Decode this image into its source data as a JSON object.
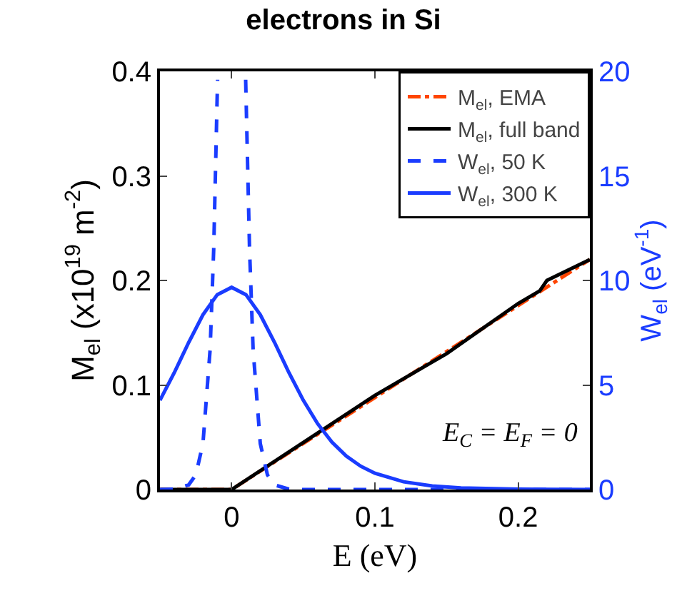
{
  "chart_data": {
    "type": "line",
    "title": "electrons in Si",
    "xlabel": "E (eV)",
    "ylabel": "M$_{el}$ (x10$^{19}$ m$^{-2}$)",
    "y2label": "W$_{el}$ (eV$^{-1}$)",
    "xlim": [
      -0.05,
      0.25
    ],
    "xticks": [
      0,
      0.1,
      0.2
    ],
    "ylim": [
      0,
      0.4
    ],
    "yticks": [
      0,
      0.1,
      0.2,
      0.3,
      0.4
    ],
    "y2lim": [
      0,
      20
    ],
    "y2ticks": [
      0,
      5,
      10,
      15,
      20
    ],
    "grid": false,
    "legend": "top right",
    "marker": "none",
    "annotations": [
      "E$_{C}$ = E$_{F}$ = 0"
    ],
    "series": [
      {
        "name": "M$_{el}$, EMA",
        "color": "#ff4500",
        "line_style": "dashdot",
        "x": [
          -0.05,
          0,
          0.25
        ],
        "values": [
          0,
          0,
          0.22
        ]
      },
      {
        "name": "M$_{el}$, full band",
        "color": "#000000",
        "line_style": "solid",
        "x": [
          -0.05,
          0,
          0.05,
          0.1,
          0.15,
          0.2,
          0.215,
          0.22,
          0.25
        ],
        "values": [
          0,
          0,
          0.045,
          0.09,
          0.13,
          0.178,
          0.19,
          0.2,
          0.22
        ]
      },
      {
        "name": "W$_{el}$, 50 K",
        "color": "#1a3cff",
        "line_style": "dashed",
        "axis": "y2",
        "x": [
          -0.05,
          -0.04,
          -0.03,
          -0.025,
          -0.02,
          -0.015,
          -0.0125,
          -0.0098,
          0,
          0.0098,
          0.0125,
          0.015,
          0.02,
          0.025,
          0.03,
          0.04,
          0.05,
          0.25
        ],
        "values": [
          0,
          0.02,
          0.22,
          0.7,
          2.2,
          6.7,
          11.5,
          19.6,
          null,
          19.6,
          11.5,
          6.7,
          2.2,
          0.7,
          0.22,
          0.02,
          0,
          0
        ]
      },
      {
        "name": "W$_{el}$, 300 K",
        "color": "#1a3cff",
        "line_style": "solid",
        "axis": "y2",
        "x": [
          -0.05,
          -0.04,
          -0.03,
          -0.02,
          -0.01,
          0,
          0.01,
          0.02,
          0.03,
          0.04,
          0.05,
          0.06,
          0.07,
          0.08,
          0.09,
          0.1,
          0.12,
          0.14,
          0.16,
          0.2,
          0.25
        ],
        "values": [
          4.27,
          5.59,
          7.03,
          8.36,
          9.32,
          9.67,
          9.32,
          8.36,
          7.03,
          5.59,
          4.27,
          3.15,
          2.27,
          1.6,
          1.12,
          0.78,
          0.37,
          0.17,
          0.08,
          0.02,
          0
        ]
      }
    ]
  }
}
